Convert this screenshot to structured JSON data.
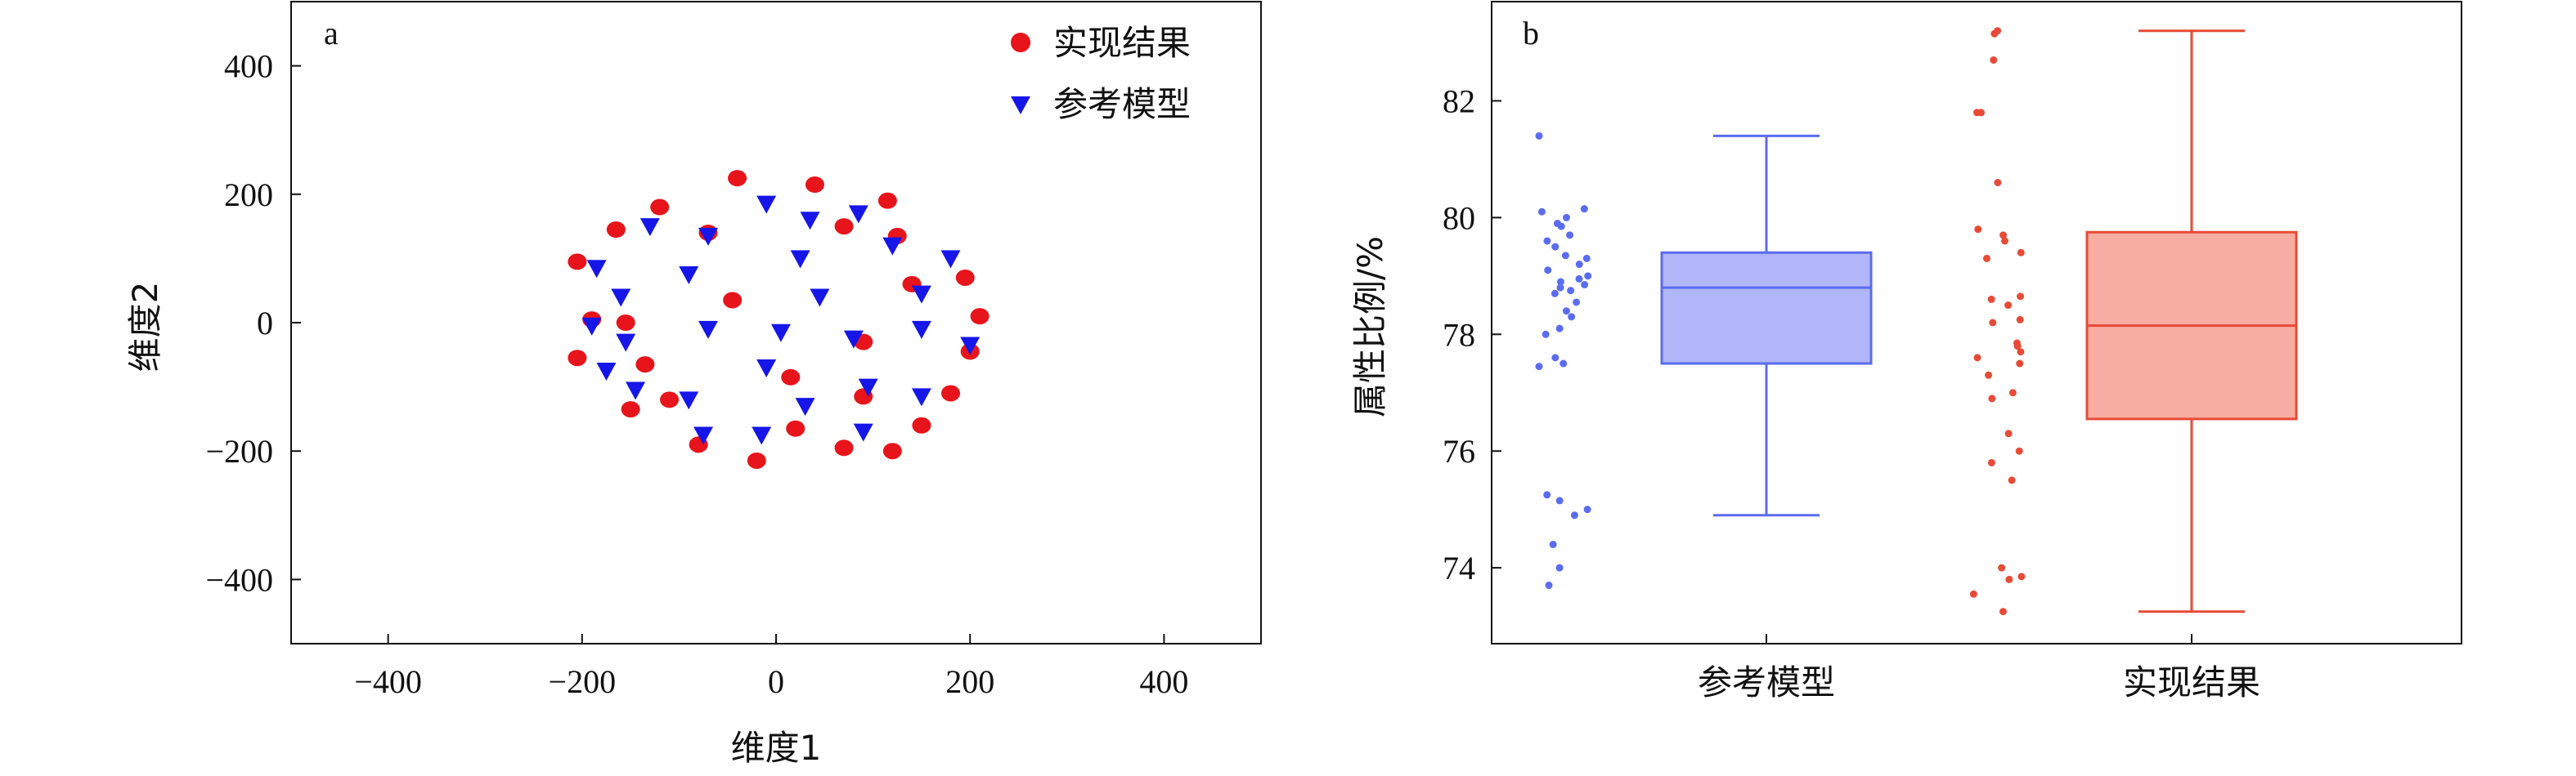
{
  "chart_data": [
    {
      "panel_label": "a",
      "type": "scatter",
      "xlabel": "维度1",
      "ylabel": "维度2",
      "xlim": [
        -500,
        500
      ],
      "ylim": [
        -500,
        500
      ],
      "xticks": [
        -400,
        -200,
        0,
        200,
        400
      ],
      "yticks": [
        -400,
        -200,
        0,
        200,
        400
      ],
      "tick_labels": {
        "-400": "−400",
        "-200": "−200",
        "0": "0",
        "200": "200",
        "400": "400"
      },
      "legend_position": "top-right",
      "series": [
        {
          "name": "实现结果",
          "marker": "circle",
          "color": "#e8141b",
          "points": [
            [
              -40,
              225
            ],
            [
              40,
              215
            ],
            [
              -120,
              180
            ],
            [
              115,
              190
            ],
            [
              -165,
              145
            ],
            [
              -70,
              140
            ],
            [
              70,
              150
            ],
            [
              125,
              135
            ],
            [
              -205,
              95
            ],
            [
              195,
              70
            ],
            [
              -45,
              35
            ],
            [
              140,
              60
            ],
            [
              -190,
              5
            ],
            [
              -155,
              0
            ],
            [
              210,
              10
            ],
            [
              -205,
              -55
            ],
            [
              -135,
              -65
            ],
            [
              15,
              -85
            ],
            [
              90,
              -30
            ],
            [
              200,
              -45
            ],
            [
              -150,
              -135
            ],
            [
              -110,
              -120
            ],
            [
              90,
              -115
            ],
            [
              180,
              -110
            ],
            [
              20,
              -165
            ],
            [
              150,
              -160
            ],
            [
              -80,
              -190
            ],
            [
              120,
              -200
            ],
            [
              70,
              -195
            ],
            [
              -20,
              -215
            ]
          ]
        },
        {
          "name": "参考模型",
          "marker": "triangle-down",
          "color": "#1616e8",
          "points": [
            [
              -10,
              185
            ],
            [
              35,
              160
            ],
            [
              -130,
              150
            ],
            [
              -70,
              135
            ],
            [
              85,
              170
            ],
            [
              -185,
              85
            ],
            [
              25,
              100
            ],
            [
              180,
              100
            ],
            [
              120,
              120
            ],
            [
              -90,
              75
            ],
            [
              -160,
              40
            ],
            [
              45,
              40
            ],
            [
              150,
              45
            ],
            [
              -70,
              -10
            ],
            [
              5,
              -15
            ],
            [
              150,
              -10
            ],
            [
              -190,
              -5
            ],
            [
              80,
              -25
            ],
            [
              200,
              -35
            ],
            [
              -155,
              -30
            ],
            [
              -175,
              -75
            ],
            [
              -10,
              -70
            ],
            [
              95,
              -100
            ],
            [
              -145,
              -105
            ],
            [
              -90,
              -120
            ],
            [
              30,
              -130
            ],
            [
              150,
              -115
            ],
            [
              -75,
              -175
            ],
            [
              -15,
              -175
            ],
            [
              90,
              -170
            ]
          ]
        }
      ]
    },
    {
      "panel_label": "b",
      "type": "box",
      "ylabel": "属性比例/%",
      "ylim": [
        72.7,
        83.7
      ],
      "yticks": [
        74,
        76,
        78,
        80,
        82
      ],
      "categories": [
        "参考模型",
        "实现结果"
      ],
      "boxes": [
        {
          "category": "参考模型",
          "color": "#5a6cf0",
          "fill": "#b0b6f8",
          "min": 74.9,
          "q1": 77.5,
          "median": 78.8,
          "q3": 79.4,
          "max": 81.4,
          "points": [
            81.4,
            80.15,
            80.1,
            80.0,
            79.9,
            79.85,
            79.7,
            79.6,
            79.5,
            79.35,
            79.3,
            79.2,
            79.1,
            79.0,
            78.95,
            78.9,
            78.85,
            78.8,
            78.75,
            78.7,
            78.55,
            78.4,
            78.3,
            78.1,
            78.0,
            77.6,
            77.5,
            77.45,
            75.25,
            75.15,
            75.0,
            74.9,
            74.4,
            74.0,
            73.7
          ]
        },
        {
          "category": "实现结果",
          "color": "#e84a36",
          "fill": "#f7ada2",
          "min": 73.25,
          "q1": 76.55,
          "median": 78.15,
          "q3": 79.75,
          "max": 83.2,
          "points": [
            83.2,
            83.15,
            82.7,
            81.8,
            81.8,
            80.6,
            79.8,
            79.7,
            79.6,
            79.4,
            79.3,
            78.65,
            78.6,
            78.5,
            78.25,
            78.2,
            77.85,
            77.8,
            77.7,
            77.6,
            77.5,
            77.3,
            77.0,
            76.9,
            76.3,
            76.0,
            75.8,
            75.5,
            74.0,
            73.85,
            73.8,
            73.55,
            73.25
          ]
        }
      ]
    }
  ]
}
